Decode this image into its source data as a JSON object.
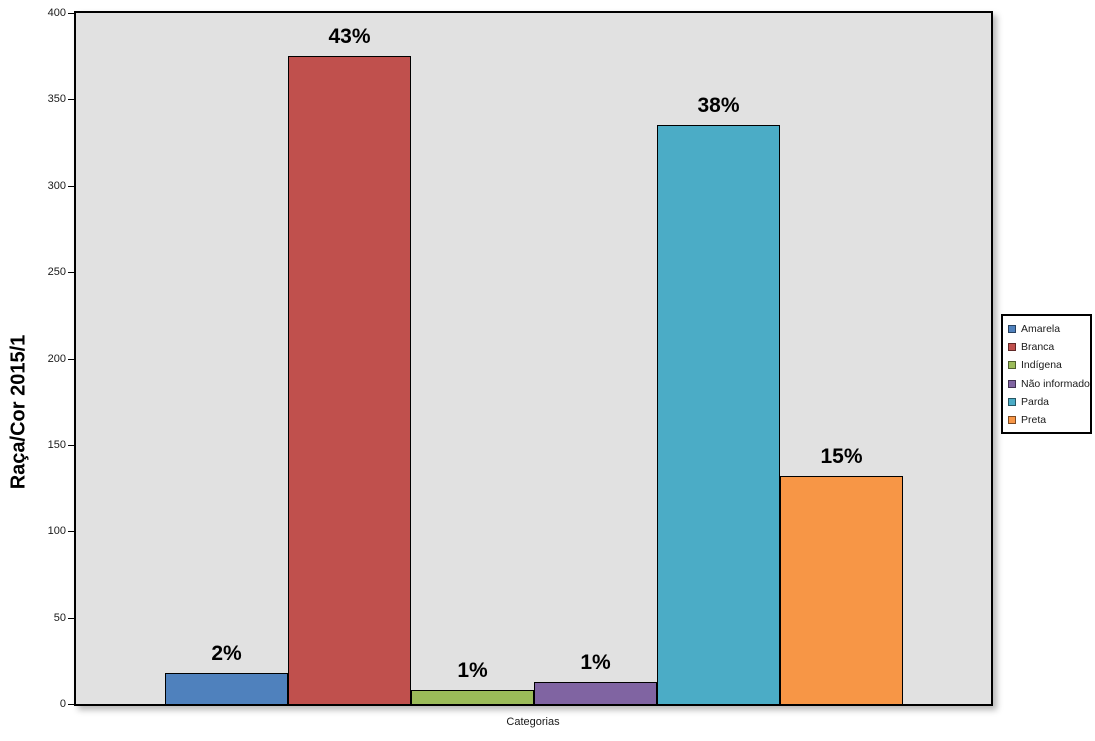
{
  "chart_data": {
    "type": "bar",
    "title": "",
    "ylabel": "Raça/Cor 2015/1",
    "xlabel": "Categorias",
    "ylim": [
      0,
      400
    ],
    "yticks": [
      0,
      50,
      100,
      150,
      200,
      250,
      300,
      350,
      400
    ],
    "grid": false,
    "legend_position": "right",
    "plot_bg_color": "#E1E1E1",
    "series": [
      {
        "name": "Amarela",
        "value": 18,
        "percent_label": "2%",
        "color": "#4F81BD"
      },
      {
        "name": "Branca",
        "value": 375,
        "percent_label": "43%",
        "color": "#C0504D"
      },
      {
        "name": "Indígena",
        "value": 8,
        "percent_label": "1%",
        "color": "#9BBB59"
      },
      {
        "name": "Não informado",
        "value": 13,
        "percent_label": "1%",
        "color": "#8064A2"
      },
      {
        "name": "Parda",
        "value": 335,
        "percent_label": "38%",
        "color": "#4BACC6"
      },
      {
        "name": "Preta",
        "value": 132,
        "percent_label": "15%",
        "color": "#F79646"
      }
    ]
  }
}
